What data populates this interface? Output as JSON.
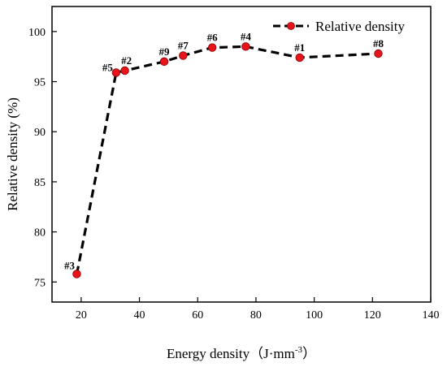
{
  "chart_data": {
    "type": "line",
    "xlabel": "Energy density（J·mm",
    "xlabel_sup": "-3",
    "xlabel_close": "）",
    "ylabel": "Relative density (%)",
    "xlim": [
      10,
      140
    ],
    "ylim": [
      73,
      102.5
    ],
    "xticks": [
      "20",
      "40",
      "60",
      "80",
      "100",
      "120",
      "140"
    ],
    "yticks": [
      "75",
      "80",
      "85",
      "90",
      "95",
      "100"
    ],
    "grid": false,
    "legend_position": "top-right",
    "series": [
      {
        "name": "Relative density",
        "line_style": "dashed",
        "line_color": "#000000",
        "marker_color": "#e8141b",
        "points": [
          {
            "label": "#3",
            "x": 18.5,
            "y": 75.8
          },
          {
            "label": "#5",
            "x": 32.0,
            "y": 95.9
          },
          {
            "label": "#2",
            "x": 35.0,
            "y": 96.1
          },
          {
            "label": "#9",
            "x": 48.5,
            "y": 97.0
          },
          {
            "label": "#7",
            "x": 55.0,
            "y": 97.6
          },
          {
            "label": "#6",
            "x": 65.0,
            "y": 98.4
          },
          {
            "label": "#4",
            "x": 76.5,
            "y": 98.5
          },
          {
            "label": "#1",
            "x": 95.0,
            "y": 97.4
          },
          {
            "label": "#8",
            "x": 122.0,
            "y": 97.8
          }
        ]
      }
    ]
  }
}
